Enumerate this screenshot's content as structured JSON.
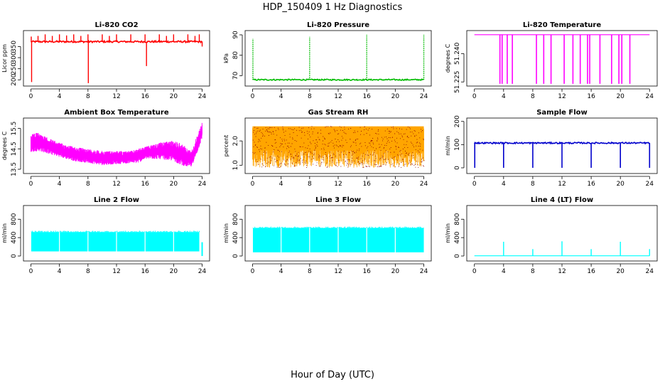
{
  "page": {
    "title": "HDP_150409  1 Hz Diagnostics",
    "xlabel": "Hour of Day (UTC)"
  },
  "chart_data": [
    {
      "type": "line",
      "title": "Li-820 CO2",
      "ylabel": "Licor ppm",
      "color": "#ff0000",
      "xlim": [
        0,
        24
      ],
      "ylim": [
        182,
        412
      ],
      "xticks": [
        0,
        4,
        8,
        12,
        16,
        20,
        24
      ],
      "yticks": [
        200,
        250,
        300,
        350
      ],
      "baseline": 372,
      "noise": 4,
      "pattern": "spikes",
      "spikes": [
        {
          "x": 0.05,
          "y": 395
        },
        {
          "x": 0.1,
          "y": 190
        },
        {
          "x": 1.0,
          "y": 398
        },
        {
          "x": 2.0,
          "y": 405
        },
        {
          "x": 3.0,
          "y": 398
        },
        {
          "x": 4.0,
          "y": 405
        },
        {
          "x": 5.0,
          "y": 400
        },
        {
          "x": 6.0,
          "y": 405
        },
        {
          "x": 7.0,
          "y": 398
        },
        {
          "x": 8.0,
          "y": 405
        },
        {
          "x": 8.05,
          "y": 185
        },
        {
          "x": 10.0,
          "y": 405
        },
        {
          "x": 11.0,
          "y": 398
        },
        {
          "x": 12.0,
          "y": 405
        },
        {
          "x": 14.0,
          "y": 405
        },
        {
          "x": 16.0,
          "y": 405
        },
        {
          "x": 16.2,
          "y": 262
        },
        {
          "x": 18.0,
          "y": 405
        },
        {
          "x": 19.0,
          "y": 398
        },
        {
          "x": 20.0,
          "y": 405
        },
        {
          "x": 22.0,
          "y": 405
        },
        {
          "x": 23.0,
          "y": 398
        },
        {
          "x": 23.6,
          "y": 405
        },
        {
          "x": 24.0,
          "y": 350
        }
      ]
    },
    {
      "type": "line",
      "title": "Li-820 Pressure",
      "ylabel": "kPa",
      "color": "#00bb00",
      "xlim": [
        0,
        24
      ],
      "ylim": [
        66,
        91
      ],
      "xticks": [
        0,
        4,
        8,
        12,
        16,
        20,
        24
      ],
      "yticks": [
        70,
        80,
        90
      ],
      "baseline": 68,
      "noise": 0.3,
      "pattern": "spikes",
      "spikes": [
        {
          "x": 0.05,
          "y": 88
        },
        {
          "x": 8.0,
          "y": 89
        },
        {
          "x": 16.0,
          "y": 90
        },
        {
          "x": 24.0,
          "y": 90
        }
      ]
    },
    {
      "type": "line",
      "title": "Li-820 Temperature",
      "ylabel": "degrees C",
      "color": "#ff00ff",
      "xlim": [
        0,
        24
      ],
      "ylim": [
        51.224,
        51.251
      ],
      "xticks": [
        0,
        4,
        8,
        12,
        16,
        20,
        24
      ],
      "yticks": [
        51.225,
        51.24
      ],
      "ytick_labels": [
        "51.225",
        "51.240"
      ],
      "baseline": 51.25,
      "noise": 0,
      "pattern": "drops",
      "drops": [
        3.5,
        3.8,
        4.5,
        5.2,
        8.5,
        9.5,
        10.5,
        12.3,
        13.5,
        14.5,
        15.5,
        15.8,
        17.2,
        18.8,
        19.8,
        20.2,
        21.3
      ]
    },
    {
      "type": "line",
      "title": "Ambient Box Temperature",
      "ylabel": "degrees C",
      "color": "#ff00ff",
      "xlim": [
        0,
        24
      ],
      "ylim": [
        13.4,
        15.9
      ],
      "xticks": [
        0,
        4,
        8,
        12,
        16,
        20,
        24
      ],
      "yticks": [
        13.5,
        14.5,
        15.5
      ],
      "ytick_labels": [
        "13.5",
        "14.5",
        "15.5"
      ],
      "pattern": "band",
      "band_x": [
        0,
        1,
        2,
        4,
        6,
        8,
        10,
        12,
        14,
        15,
        16,
        18,
        20,
        21,
        22,
        22.5,
        23,
        24
      ],
      "band_lo": [
        14.3,
        14.4,
        14.3,
        14.1,
        13.9,
        13.8,
        13.7,
        13.75,
        13.8,
        13.8,
        14.0,
        14.0,
        13.9,
        13.7,
        13.6,
        13.6,
        14.0,
        15.0
      ],
      "band_hi": [
        15.2,
        15.3,
        15.1,
        14.8,
        14.6,
        14.5,
        14.4,
        14.4,
        14.4,
        14.5,
        14.6,
        14.8,
        14.9,
        14.8,
        14.5,
        14.4,
        14.9,
        15.8
      ]
    },
    {
      "type": "scatter",
      "title": "Gas Stream RH",
      "ylabel": "percent",
      "color": "#ffa500",
      "color2": "#8b0000",
      "xlim": [
        0,
        24
      ],
      "ylim": [
        0.75,
        2.85
      ],
      "xticks": [
        0,
        4,
        8,
        12,
        16,
        20,
        24
      ],
      "yticks": [
        1.0,
        2.0
      ],
      "ytick_labels": [
        "1.0",
        "2.0"
      ],
      "pattern": "noise_band",
      "band_lo": 0.9,
      "band_hi": 2.6,
      "dense_lo": 1.6
    },
    {
      "type": "line",
      "title": "Sample Flow",
      "ylabel": "ml/min",
      "color": "#0000cc",
      "xlim": [
        0,
        24
      ],
      "ylim": [
        -15,
        205
      ],
      "xticks": [
        0,
        4,
        8,
        12,
        16,
        20,
        24
      ],
      "yticks": [
        0,
        100,
        200
      ],
      "baseline": 107,
      "noise": 3,
      "pattern": "drops",
      "drop_to": 0,
      "drops": [
        0.05,
        4.0,
        8.0,
        12.0,
        16.0,
        20.0,
        24.0
      ]
    },
    {
      "type": "line",
      "title": "Line 2 Flow",
      "ylabel": "ml/min",
      "color": "#00ffff",
      "xlim": [
        0,
        24
      ],
      "ylim": [
        -60,
        1050
      ],
      "xticks": [
        0,
        4,
        8,
        12,
        16,
        20,
        24
      ],
      "yticks": [
        0,
        400,
        800
      ],
      "pattern": "block",
      "block_lo": 100,
      "block_hi": 520,
      "block_start": 0.05,
      "block_end": 23.6,
      "gaps": [
        4.0,
        8.0,
        12.0,
        16.0,
        20.0
      ],
      "tail": [
        {
          "x": 24.0,
          "y": 300
        }
      ]
    },
    {
      "type": "line",
      "title": "Line 3 Flow",
      "ylabel": "ml/min",
      "color": "#00ffff",
      "xlim": [
        0,
        24
      ],
      "ylim": [
        -60,
        1050
      ],
      "xticks": [
        0,
        4,
        8,
        12,
        16,
        20,
        24
      ],
      "yticks": [
        0,
        400,
        800
      ],
      "pattern": "block",
      "block_lo": 80,
      "block_hi": 610,
      "block_start": 0.05,
      "block_end": 24.0,
      "gaps": [
        4.0,
        8.0,
        12.0,
        16.0,
        20.0
      ],
      "tail": []
    },
    {
      "type": "line",
      "title": "Line 4 (LT) Flow",
      "ylabel": "ml/min",
      "color": "#00ffff",
      "xlim": [
        0,
        24
      ],
      "ylim": [
        -60,
        1050
      ],
      "xticks": [
        0,
        4,
        8,
        12,
        16,
        20,
        24
      ],
      "yticks": [
        0,
        400,
        800
      ],
      "baseline": 5,
      "noise": 0,
      "pattern": "spikes",
      "spikes": [
        {
          "x": 4.0,
          "y": 310
        },
        {
          "x": 8.0,
          "y": 150
        },
        {
          "x": 12.0,
          "y": 320
        },
        {
          "x": 16.0,
          "y": 150
        },
        {
          "x": 20.0,
          "y": 310
        },
        {
          "x": 24.0,
          "y": 150
        }
      ]
    }
  ]
}
